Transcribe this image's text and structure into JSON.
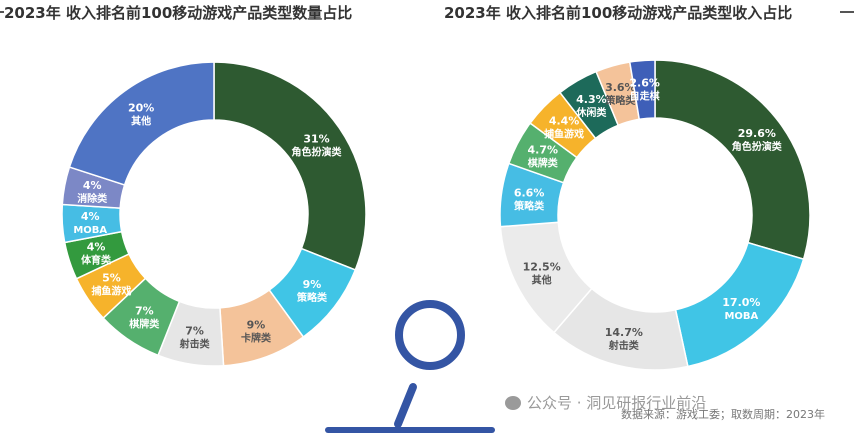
{
  "chart_data": [
    {
      "type": "pie",
      "title": "2023年 收入排名前100移动游戏产品类型数量占比",
      "slices": [
        {
          "label": "角色扮演类",
          "value": 31,
          "value_text": "31%",
          "color": "#2e5a31"
        },
        {
          "label": "策略类",
          "value": 9,
          "value_text": "9%",
          "color": "#40c5e6"
        },
        {
          "label": "卡牌类",
          "value": 9,
          "value_text": "9%",
          "color": "#f4c39a"
        },
        {
          "label": "射击类",
          "value": 7,
          "value_text": "7%",
          "color": "#e6e6e6"
        },
        {
          "label": "棋牌类",
          "value": 7,
          "value_text": "7%",
          "color": "#55b06e"
        },
        {
          "label": "捕鱼游戏",
          "value": 5,
          "value_text": "5%",
          "color": "#f6b32b"
        },
        {
          "label": "体育类",
          "value": 4,
          "value_text": "4%",
          "color": "#339a3e"
        },
        {
          "label": "MOBA",
          "value": 4,
          "value_text": "4%",
          "color": "#46bde4"
        },
        {
          "label": "消除类",
          "value": 4,
          "value_text": "4%",
          "color": "#7c88c6"
        },
        {
          "label": "其他",
          "value": 20,
          "value_text": "20%",
          "color": "#4f74c4"
        }
      ]
    },
    {
      "type": "pie",
      "title": "2023年 收入排名前100移动游戏产品类型收入占比",
      "slices": [
        {
          "label": "角色扮演类",
          "value": 29.6,
          "value_text": "29.6%",
          "color": "#2e5a31"
        },
        {
          "label": "MOBA",
          "value": 17.0,
          "value_text": "17.0%",
          "color": "#40c5e6"
        },
        {
          "label": "射击类",
          "value": 14.7,
          "value_text": "14.7%",
          "color": "#e6e6e6"
        },
        {
          "label": "其他",
          "value": 12.5,
          "value_text": "12.5%",
          "color": "#ebebeb"
        },
        {
          "label": "策略类",
          "value": 6.6,
          "value_text": "6.6%",
          "color": "#46bde4"
        },
        {
          "label": "棋牌类",
          "value": 4.7,
          "value_text": "4.7%",
          "color": "#55b06e"
        },
        {
          "label": "捕鱼游戏",
          "value": 4.4,
          "value_text": "4.4%",
          "color": "#f6b32b"
        },
        {
          "label": "休闲类",
          "value": 4.3,
          "value_text": "4.3%",
          "color": "#1d6a5a"
        },
        {
          "label": "策略类",
          "value": 3.6,
          "value_text": "3.6%",
          "color": "#f4c39a"
        },
        {
          "label": "自走棋",
          "value": 2.6,
          "value_text": "2.6%",
          "color": "#3e5fb8"
        }
      ]
    }
  ],
  "watermark": "公众号 · 洞见研报行业前沿",
  "source": "数据来源：游戏工委；取数周期：2023年"
}
